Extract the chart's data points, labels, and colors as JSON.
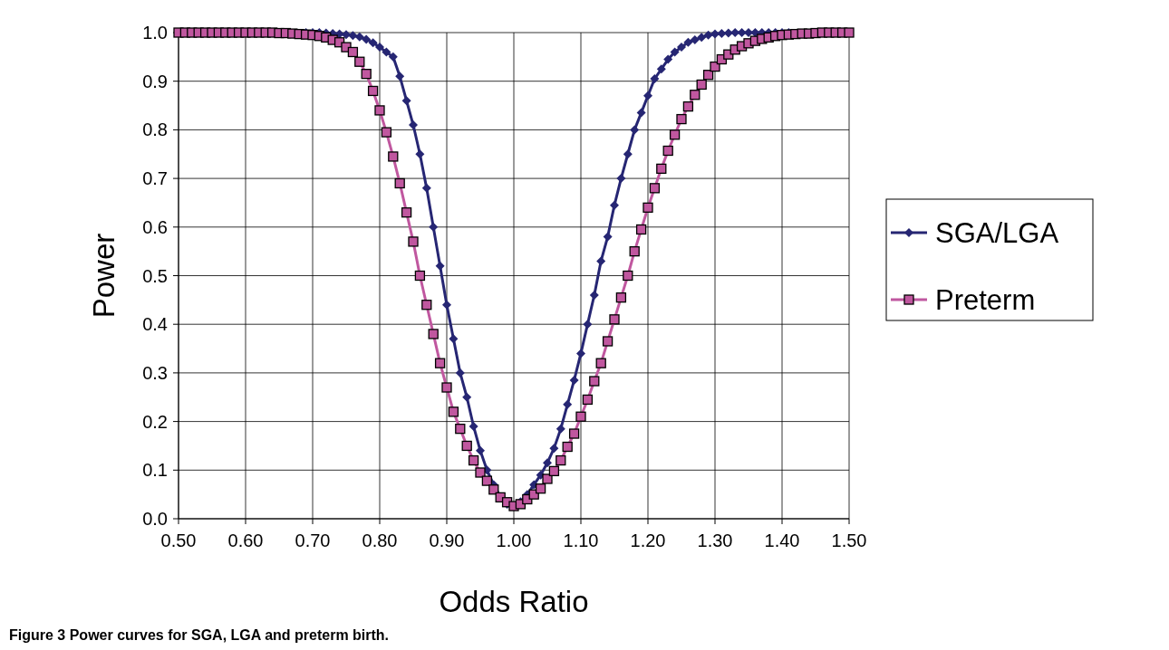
{
  "chart_data": {
    "type": "line",
    "xlabel": "Odds Ratio",
    "ylabel": "Power",
    "annotations": [
      "Figure 3 Power curves for SGA, LGA and preterm birth."
    ],
    "x": [
      0.5,
      0.51,
      0.52,
      0.53,
      0.54,
      0.55,
      0.56,
      0.57,
      0.58,
      0.59,
      0.6,
      0.61,
      0.62,
      0.63,
      0.64,
      0.65,
      0.66,
      0.67,
      0.68,
      0.69,
      0.7,
      0.71,
      0.72,
      0.73,
      0.74,
      0.75,
      0.76,
      0.77,
      0.78,
      0.79,
      0.8,
      0.81,
      0.82,
      0.83,
      0.84,
      0.85,
      0.86,
      0.87,
      0.88,
      0.89,
      0.9,
      0.91,
      0.92,
      0.93,
      0.94,
      0.95,
      0.96,
      0.97,
      0.98,
      0.99,
      1.0,
      1.01,
      1.02,
      1.03,
      1.04,
      1.05,
      1.06,
      1.07,
      1.08,
      1.09,
      1.1,
      1.11,
      1.12,
      1.13,
      1.14,
      1.15,
      1.16,
      1.17,
      1.18,
      1.19,
      1.2,
      1.21,
      1.22,
      1.23,
      1.24,
      1.25,
      1.26,
      1.27,
      1.28,
      1.29,
      1.3,
      1.31,
      1.32,
      1.33,
      1.34,
      1.35,
      1.36,
      1.37,
      1.38,
      1.39,
      1.4,
      1.41,
      1.42,
      1.43,
      1.44,
      1.45,
      1.46,
      1.47,
      1.48,
      1.49,
      1.5
    ],
    "series": [
      {
        "name": "SGA/LGA",
        "color": "#262673",
        "marker": "diamond",
        "values": [
          null,
          null,
          null,
          null,
          null,
          null,
          null,
          null,
          null,
          null,
          null,
          null,
          null,
          null,
          null,
          null,
          null,
          null,
          null,
          1,
          1,
          1,
          0.999,
          0.998,
          0.997,
          0.996,
          0.994,
          0.991,
          0.986,
          0.979,
          0.97,
          0.96,
          0.95,
          0.91,
          0.86,
          0.81,
          0.75,
          0.68,
          0.6,
          0.52,
          0.44,
          0.37,
          0.3,
          0.25,
          0.19,
          0.14,
          0.1,
          0.07,
          0.045,
          0.03,
          0.025,
          0.035,
          0.05,
          0.07,
          0.09,
          0.115,
          0.145,
          0.185,
          0.235,
          0.285,
          0.34,
          0.4,
          0.46,
          0.53,
          0.58,
          0.645,
          0.7,
          0.75,
          0.8,
          0.835,
          0.87,
          0.905,
          0.925,
          0.945,
          0.96,
          0.97,
          0.98,
          0.985,
          0.99,
          0.995,
          0.997,
          0.998,
          0.999,
          1,
          1,
          1,
          1,
          1,
          1,
          1,
          1,
          1,
          null,
          null,
          null,
          null,
          null,
          null,
          null,
          null,
          null
        ]
      },
      {
        "name": "Preterm",
        "color": "#c0579f",
        "marker": "square",
        "values": [
          1,
          1,
          1,
          1,
          1,
          1,
          1,
          1,
          1,
          1,
          1,
          1,
          1,
          1,
          1,
          0.999,
          0.999,
          0.998,
          0.997,
          0.996,
          0.995,
          0.993,
          0.99,
          0.985,
          0.98,
          0.97,
          0.96,
          0.94,
          0.915,
          0.88,
          0.84,
          0.795,
          0.745,
          0.69,
          0.63,
          0.57,
          0.5,
          0.44,
          0.38,
          0.32,
          0.27,
          0.22,
          0.185,
          0.15,
          0.12,
          0.095,
          0.078,
          0.06,
          0.044,
          0.034,
          0.026,
          0.03,
          0.04,
          0.05,
          0.062,
          0.082,
          0.098,
          0.12,
          0.148,
          0.175,
          0.21,
          0.245,
          0.283,
          0.32,
          0.365,
          0.41,
          0.455,
          0.5,
          0.55,
          0.595,
          0.64,
          0.68,
          0.72,
          0.757,
          0.79,
          0.822,
          0.848,
          0.872,
          0.893,
          0.913,
          0.93,
          0.945,
          0.955,
          0.965,
          0.972,
          0.978,
          0.983,
          0.987,
          0.99,
          0.993,
          0.995,
          0.996,
          0.997,
          0.998,
          0.998,
          0.999,
          1,
          1,
          1,
          1,
          1
        ]
      }
    ],
    "xlim": [
      0.5,
      1.5
    ],
    "xticks": [
      {
        "value": 0.5,
        "label": "0.50"
      },
      {
        "value": 0.6,
        "label": "0.60"
      },
      {
        "value": 0.7,
        "label": "0.70"
      },
      {
        "value": 0.8,
        "label": "0.80"
      },
      {
        "value": 0.9,
        "label": "0.90"
      },
      {
        "value": 1.0,
        "label": "1.00"
      },
      {
        "value": 1.1,
        "label": "1.10"
      },
      {
        "value": 1.2,
        "label": "1.20"
      },
      {
        "value": 1.3,
        "label": "1.30"
      },
      {
        "value": 1.4,
        "label": "1.40"
      },
      {
        "value": 1.5,
        "label": "1.50"
      }
    ],
    "ylim": [
      0,
      1
    ],
    "yticks": [
      {
        "value": 0,
        "label": "0.0"
      },
      {
        "value": 0.1,
        "label": "0.1"
      },
      {
        "value": 0.2,
        "label": "0.2"
      },
      {
        "value": 0.3,
        "label": "0.3"
      },
      {
        "value": 0.4,
        "label": "0.4"
      },
      {
        "value": 0.5,
        "label": "0.5"
      },
      {
        "value": 0.6,
        "label": "0.6"
      },
      {
        "value": 0.7,
        "label": "0.7"
      },
      {
        "value": 0.8,
        "label": "0.8"
      },
      {
        "value": 0.9,
        "label": "0.9"
      },
      {
        "value": 1,
        "label": "1.0"
      }
    ],
    "grid": true,
    "legend": "right",
    "line_style": "solid"
  }
}
